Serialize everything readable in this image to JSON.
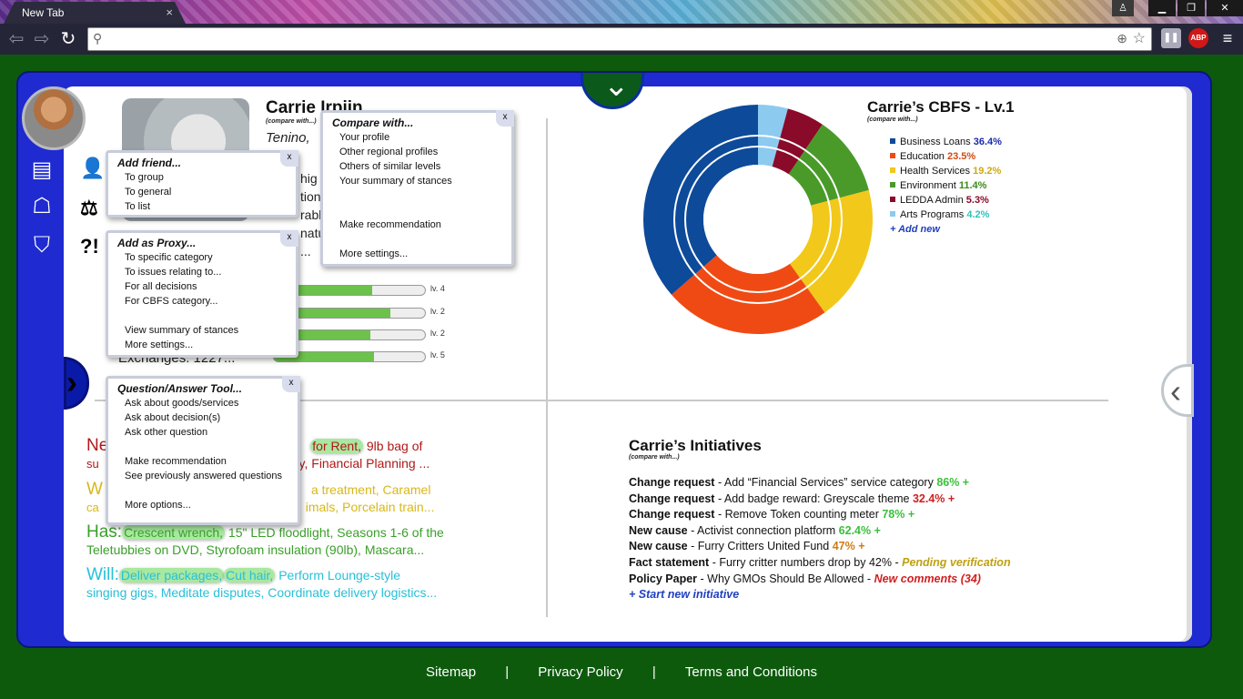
{
  "browser": {
    "tab_title": "New Tab",
    "tab_close": "×",
    "address_value": "",
    "ext_pause": "❚❚",
    "ext_abp": "ABP",
    "menu": "≡"
  },
  "profile": {
    "name": "Carrie Irpiin",
    "compare_small": "(compare with...)",
    "location": "Tenino,",
    "bio_lines": [
      "hig",
      "tion",
      "rabl",
      "nature.\""
    ],
    "ellipsis": "...",
    "exchanges": "Exchanges: 1227...",
    "question_icon": "?!",
    "bars": [
      {
        "label": "lv. 4",
        "fill": 0.65
      },
      {
        "label": "lv. 2",
        "fill": 0.77
      },
      {
        "label": "lv. 2",
        "fill": 0.64
      },
      {
        "label": "lv. 5",
        "fill": 0.66
      }
    ]
  },
  "popups": {
    "compare": {
      "title": "Compare with...",
      "items": [
        "Your profile",
        "Other regional profiles",
        "Others of similar levels",
        "Your summary of stances",
        "",
        "",
        "Make recommendation",
        "",
        "More settings..."
      ]
    },
    "add_friend": {
      "title": "Add friend...",
      "items": [
        "To group",
        "To general",
        "To list"
      ]
    },
    "add_proxy": {
      "title": "Add as Proxy...",
      "items": [
        "To specific category",
        "To issues relating to...",
        "For all decisions",
        "For CBFS category...",
        "",
        "View summary of stances",
        "More settings..."
      ]
    },
    "qa_tool": {
      "title": "Question/Answer Tool...",
      "items": [
        "Ask about goods/services",
        "Ask about decision(s)",
        "Ask other question",
        "",
        "Make recommendation",
        "See previously answered questions",
        "",
        "More options..."
      ]
    },
    "close": "x"
  },
  "nwhw": {
    "needs_word": "Ne",
    "needs_tag": "for Rent,",
    "needs_rest": " 9lb bag of",
    "needs_line2a": "su",
    "needs_line2b": "py, Financial Planning ...",
    "wants_word": "W",
    "wants_line1": "a treatment, Caramel",
    "wants_line2a": "ca",
    "wants_line2b": "imals, Porcelain train...",
    "has_word": "Has:",
    "has_tag": "Crescent wrench,",
    "has_rest": " 15\" LED floodlight, Seasons 1-6 of the",
    "has_line2": "Teletubbies on DVD,  Styrofoam insulation (90lb), Mascara...",
    "will_word": "Will:",
    "will_tag1": "Deliver packages,",
    "will_tag2": "Cut hair,",
    "will_rest": " Perform Lounge-style",
    "will_line2": "singing gigs, Meditate disputes, Coordinate delivery logistics..."
  },
  "cbfs": {
    "title": "Carrie’s CBFS - Lv.1",
    "compare_small": "(compare with...)",
    "add_new": "+ Add new",
    "legend": [
      {
        "name": "Business Loans",
        "pct": "36.4%",
        "value": 36.4,
        "color": "#0d4a9a",
        "pct_color": "#1a2ab0"
      },
      {
        "name": "Education",
        "pct": "23.5%",
        "value": 23.5,
        "color": "#f04a14",
        "pct_color": "#d04a14"
      },
      {
        "name": "Health Services",
        "pct": "19.2%",
        "value": 19.2,
        "color": "#f2c81a",
        "pct_color": "#d0a810"
      },
      {
        "name": "Environment",
        "pct": "11.4%",
        "value": 11.4,
        "color": "#4a9a2a",
        "pct_color": "#3a8a1a"
      },
      {
        "name": "LEDDA Admin",
        "pct": "5.3%",
        "value": 5.3,
        "color": "#8a0a2a",
        "pct_color": "#8a0a2a"
      },
      {
        "name": "Arts Programs",
        "pct": "4.2%",
        "value": 4.2,
        "color": "#8ccaf0",
        "pct_color": "#30c0c0"
      }
    ]
  },
  "initiatives": {
    "title": "Carrie’s Initiatives",
    "compare_small": "(compare with...)",
    "rows": [
      {
        "bold": "Change request",
        "text": " - Add “Financial Services” service category ",
        "stat": "86% +",
        "stat_color": "#3ac03a"
      },
      {
        "bold": "Change request",
        "text": " - Add badge reward: Greyscale theme ",
        "stat": "32.4% +",
        "stat_color": "#d02020"
      },
      {
        "bold": "Change request",
        "text": " - Remove Token counting meter ",
        "stat": "78% +",
        "stat_color": "#3ac03a"
      },
      {
        "bold": "New cause",
        "text": " - Activist connection platform ",
        "stat": "62.4% +",
        "stat_color": "#3ac03a"
      },
      {
        "bold": "New cause",
        "text": " - Furry Critters United Fund ",
        "stat": "47% +",
        "stat_color": "#d07a14"
      },
      {
        "bold": "Fact statement",
        "text": " - Furry critter numbers drop by 42% - ",
        "stat": "Pending verification",
        "stat_color": "#c0a010"
      },
      {
        "bold": "Policy Paper",
        "text": " - Why GMOs Should Be Allowed - ",
        "stat": "New comments (34)",
        "stat_color": "#d02020"
      }
    ],
    "start_new": "+ Start new initiative"
  },
  "footer": {
    "sitemap": "Sitemap",
    "sep": "|",
    "privacy": "Privacy Policy",
    "terms": "Terms and Conditions"
  }
}
